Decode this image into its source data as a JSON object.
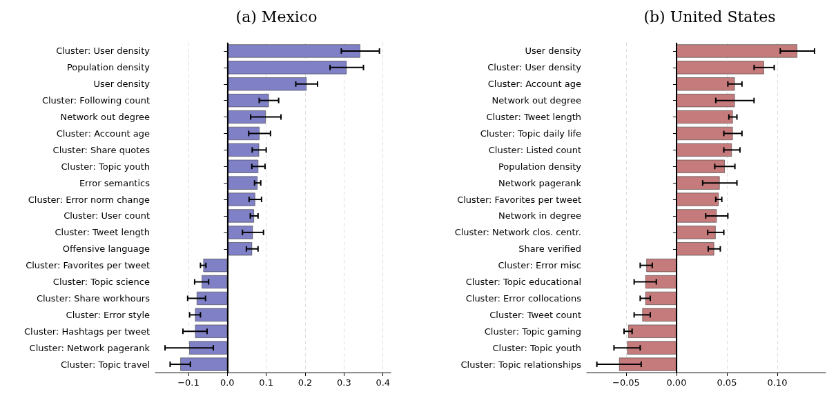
{
  "chart_data": [
    {
      "type": "bar",
      "orientation": "horizontal",
      "title": "(a) Mexico",
      "categories": [
        "Cluster: User density",
        "Population density",
        "User density",
        "Cluster: Following count",
        "Network out degree",
        "Cluster: Account age",
        "Cluster: Share quotes",
        "Cluster: Topic youth",
        "Error semantics",
        "Cluster: Error norm change",
        "Cluster: User count",
        "Cluster: Tweet length",
        "Offensive language",
        "Cluster: Favorites per tweet",
        "Cluster: Topic science",
        "Cluster: Share workhours",
        "Cluster: Error style",
        "Cluster: Hashtags per tweet",
        "Cluster: Network pagerank",
        "Cluster: Topic travel"
      ],
      "values": [
        0.342,
        0.307,
        0.204,
        0.107,
        0.099,
        0.083,
        0.082,
        0.08,
        0.078,
        0.072,
        0.069,
        0.066,
        0.064,
        -0.062,
        -0.066,
        -0.079,
        -0.083,
        -0.083,
        -0.098,
        -0.121
      ],
      "errors": [
        0.049,
        0.043,
        0.028,
        0.025,
        0.039,
        0.028,
        0.018,
        0.017,
        0.008,
        0.016,
        0.01,
        0.027,
        0.015,
        0.007,
        0.018,
        0.023,
        0.014,
        0.031,
        0.062,
        0.026
      ],
      "color": "#7f80c6",
      "xlim": [
        -0.185,
        0.42
      ],
      "xticks": [
        {
          "value": -0.1,
          "label": "−0.1"
        },
        {
          "value": 0,
          "label": "0.0"
        },
        {
          "value": 0.1,
          "label": "0.1"
        },
        {
          "value": 0.2,
          "label": "0.2"
        },
        {
          "value": 0.3,
          "label": "0.3"
        },
        {
          "value": 0.4,
          "label": "0.4"
        }
      ],
      "ref_lines": [
        {
          "axis": "x",
          "value": 0,
          "color": "#000000"
        }
      ],
      "grid": "x"
    },
    {
      "type": "bar",
      "orientation": "horizontal",
      "title": "(b) United States",
      "categories": [
        "User density",
        "Cluster: User density",
        "Cluster: Account age",
        "Network out degree",
        "Cluster: Tweet length",
        "Cluster: Topic daily life",
        "Cluster: Listed count",
        "Population density",
        "Network pagerank",
        "Cluster: Favorites per tweet",
        "Network in degree",
        "Cluster: Network clos. centr.",
        "Share verified",
        "Cluster: Error misc",
        "Cluster: Topic educational",
        "Cluster: Error collocations",
        "Cluster: Tweet count",
        "Cluster: Topic gaming",
        "Cluster: Topic youth",
        "Cluster: Topic relationships"
      ],
      "values": [
        0.12,
        0.087,
        0.058,
        0.058,
        0.056,
        0.056,
        0.055,
        0.048,
        0.043,
        0.042,
        0.04,
        0.039,
        0.0375,
        -0.03,
        -0.031,
        -0.031,
        -0.034,
        -0.048,
        -0.049,
        -0.057
      ],
      "errors": [
        0.017,
        0.01,
        0.007,
        0.019,
        0.004,
        0.009,
        0.008,
        0.01,
        0.017,
        0.003,
        0.011,
        0.008,
        0.006,
        0.006,
        0.011,
        0.005,
        0.008,
        0.004,
        0.013,
        0.022
      ],
      "color": "#c57b7b",
      "xlim": [
        -0.089,
        0.148
      ],
      "xticks": [
        {
          "value": -0.05,
          "label": "−0.05"
        },
        {
          "value": 0,
          "label": "0.00"
        },
        {
          "value": 0.05,
          "label": "0.05"
        },
        {
          "value": 0.1,
          "label": "0.10"
        }
      ],
      "ref_lines": [
        {
          "axis": "x",
          "value": 0,
          "color": "#000000"
        }
      ],
      "grid": "x"
    }
  ]
}
